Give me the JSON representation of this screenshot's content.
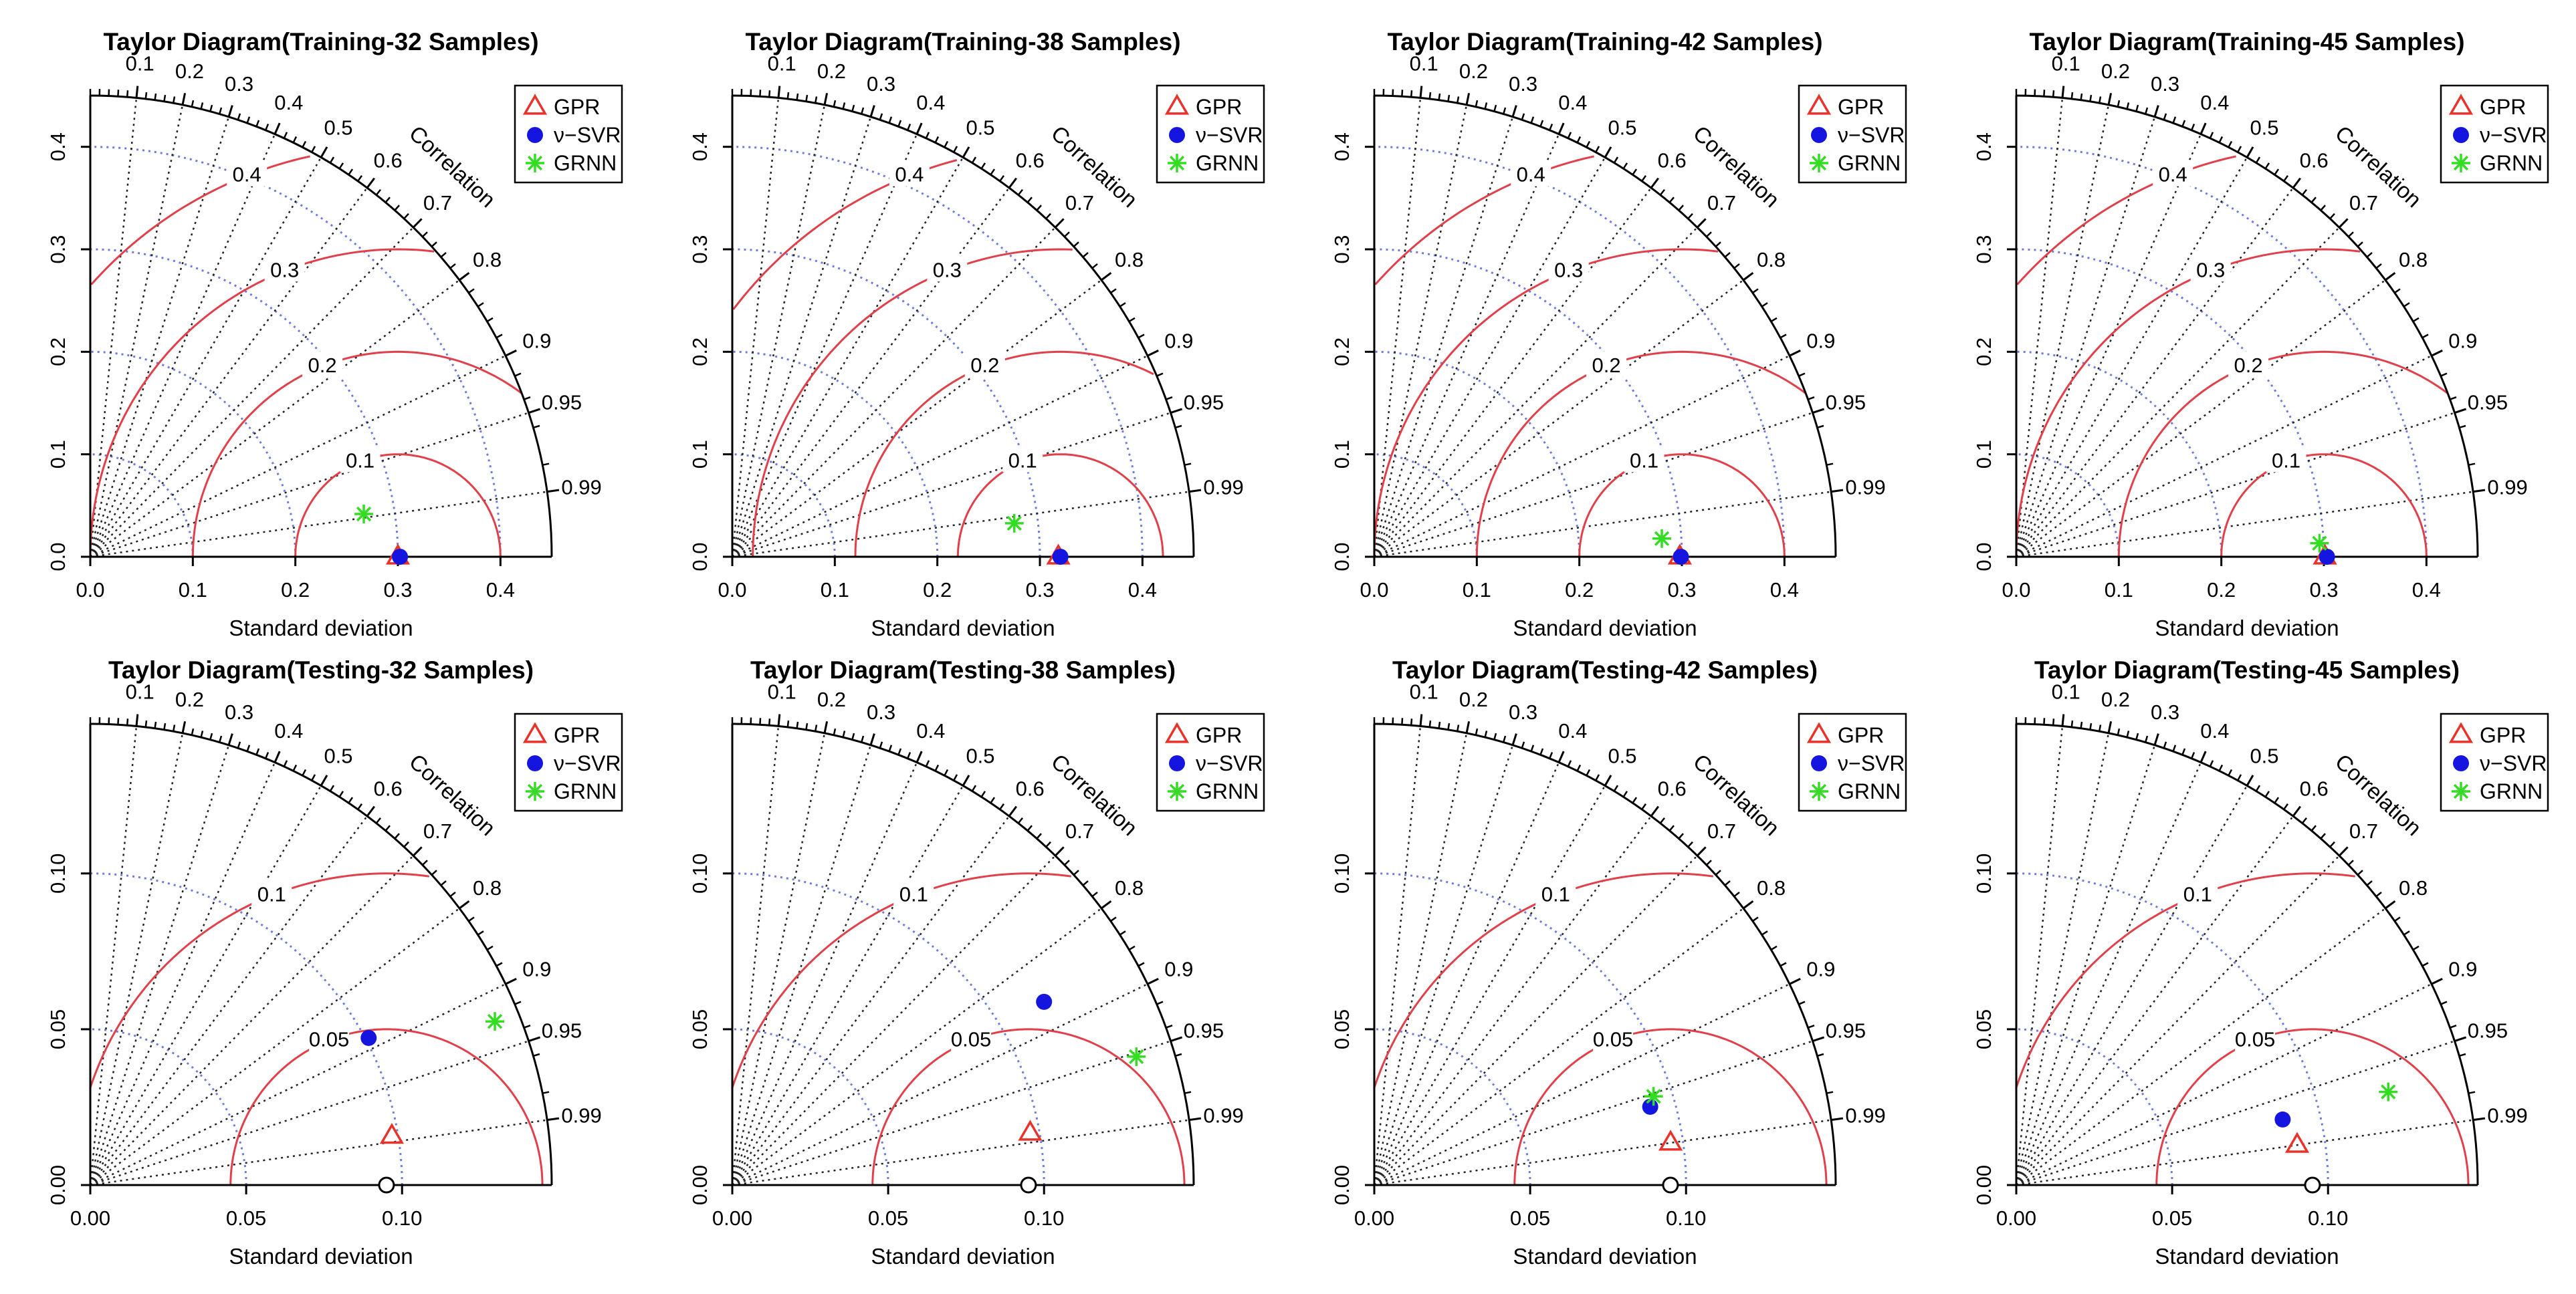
{
  "figure": {
    "description_free": true,
    "axis_x_label": "Standard deviation",
    "axis_y_label": "",
    "correlation_label": "Correlation",
    "legend": [
      {
        "name": "GPR",
        "marker": "triangle",
        "color": "#e8322a"
      },
      {
        "name": "ν−SVR",
        "marker": "dot",
        "color": "#1515e0"
      },
      {
        "name": "GRNN",
        "marker": "star",
        "color": "#33dd22"
      }
    ],
    "correlation_ticks": [
      "0.1",
      "0.2",
      "0.3",
      "0.4",
      "0.5",
      "0.6",
      "0.7",
      "0.8",
      "0.9",
      "0.95",
      "0.99"
    ],
    "colors": {
      "rms": "#e0404a",
      "sd_ref": "#6f7bdc",
      "corr": "#222222",
      "axis": "#000000"
    }
  },
  "chart_data": [
    {
      "type": "taylor",
      "title": "Taylor Diagram(Training-32 Samples)",
      "sd_max": 0.45,
      "sd_ticks": [
        "0.0",
        "0.1",
        "0.2",
        "0.3",
        "0.4"
      ],
      "y_ticks": [
        "0.0",
        "0.1",
        "0.2",
        "0.3",
        "0.4"
      ],
      "reference_sd": 0.3,
      "reference_marker": "filled",
      "sd_arcs": [
        0.1,
        0.2,
        0.3,
        0.4
      ],
      "rms_arcs": [
        "0.1",
        "0.2",
        "0.3",
        "0.4"
      ],
      "points": [
        {
          "model": "GPR",
          "sd": 0.3,
          "corr": 1.0
        },
        {
          "model": "ν−SVR",
          "sd": 0.302,
          "corr": 1.0
        },
        {
          "model": "GRNN",
          "sd": 0.27,
          "corr": 0.988
        }
      ]
    },
    {
      "type": "taylor",
      "title": "Taylor Diagram(Training-38 Samples)",
      "sd_max": 0.45,
      "sd_ticks": [
        "0.0",
        "0.1",
        "0.2",
        "0.3",
        "0.4"
      ],
      "y_ticks": [
        "0.0",
        "0.1",
        "0.2",
        "0.3",
        "0.4"
      ],
      "reference_sd": 0.32,
      "reference_marker": "filled",
      "sd_arcs": [
        0.1,
        0.2,
        0.3,
        0.4
      ],
      "rms_arcs": [
        "0.1",
        "0.2",
        "0.3",
        "0.4"
      ],
      "points": [
        {
          "model": "GPR",
          "sd": 0.318,
          "corr": 1.0
        },
        {
          "model": "ν−SVR",
          "sd": 0.32,
          "corr": 1.0
        },
        {
          "model": "GRNN",
          "sd": 0.277,
          "corr": 0.993
        }
      ]
    },
    {
      "type": "taylor",
      "title": "Taylor Diagram(Training-42 Samples)",
      "sd_max": 0.45,
      "sd_ticks": [
        "0.0",
        "0.1",
        "0.2",
        "0.3",
        "0.4"
      ],
      "y_ticks": [
        "0.0",
        "0.1",
        "0.2",
        "0.3",
        "0.4"
      ],
      "reference_sd": 0.3,
      "reference_marker": "filled",
      "sd_arcs": [
        0.1,
        0.2,
        0.3,
        0.4
      ],
      "rms_arcs": [
        "0.1",
        "0.2",
        "0.3",
        "0.4"
      ],
      "points": [
        {
          "model": "GPR",
          "sd": 0.298,
          "corr": 1.0
        },
        {
          "model": "ν−SVR",
          "sd": 0.299,
          "corr": 1.0
        },
        {
          "model": "GRNN",
          "sd": 0.281,
          "corr": 0.998
        }
      ]
    },
    {
      "type": "taylor",
      "title": "Taylor Diagram(Training-45 Samples)",
      "sd_max": 0.45,
      "sd_ticks": [
        "0.0",
        "0.1",
        "0.2",
        "0.3",
        "0.4"
      ],
      "y_ticks": [
        "0.0",
        "0.1",
        "0.2",
        "0.3",
        "0.4"
      ],
      "reference_sd": 0.3,
      "reference_marker": "filled",
      "sd_arcs": [
        0.1,
        0.2,
        0.3,
        0.4
      ],
      "rms_arcs": [
        "0.1",
        "0.2",
        "0.3",
        "0.4"
      ],
      "points": [
        {
          "model": "GPR",
          "sd": 0.301,
          "corr": 1.0
        },
        {
          "model": "ν−SVR",
          "sd": 0.303,
          "corr": 1.0
        },
        {
          "model": "GRNN",
          "sd": 0.296,
          "corr": 0.999
        }
      ]
    },
    {
      "type": "taylor",
      "title": "Taylor Diagram(Testing-32 Samples)",
      "sd_max": 0.148,
      "sd_ticks": [
        "0.00",
        "0.05",
        "0.10"
      ],
      "y_ticks": [
        "0.00",
        "0.05",
        "0.10"
      ],
      "reference_sd": 0.095,
      "reference_marker": "open",
      "sd_arcs": [
        0.05,
        0.1
      ],
      "rms_arcs": [
        "0.05",
        "0.1"
      ],
      "points": [
        {
          "model": "GPR",
          "sd": 0.098,
          "corr": 0.987
        },
        {
          "model": "ν−SVR",
          "sd": 0.101,
          "corr": 0.884
        },
        {
          "model": "GRNN",
          "sd": 0.14,
          "corr": 0.927
        }
      ]
    },
    {
      "type": "taylor",
      "title": "Taylor Diagram(Testing-38 Samples)",
      "sd_max": 0.148,
      "sd_ticks": [
        "0.00",
        "0.05",
        "0.10"
      ],
      "y_ticks": [
        "0.00",
        "0.05",
        "0.10"
      ],
      "reference_sd": 0.095,
      "reference_marker": "open",
      "sd_arcs": [
        0.05,
        0.1
      ],
      "rms_arcs": [
        "0.05",
        "0.1"
      ],
      "points": [
        {
          "model": "GPR",
          "sd": 0.097,
          "corr": 0.985
        },
        {
          "model": "ν−SVR",
          "sd": 0.116,
          "corr": 0.862
        },
        {
          "model": "GRNN",
          "sd": 0.136,
          "corr": 0.953
        }
      ]
    },
    {
      "type": "taylor",
      "title": "Taylor Diagram(Testing-42 Samples)",
      "sd_max": 0.148,
      "sd_ticks": [
        "0.00",
        "0.05",
        "0.10"
      ],
      "y_ticks": [
        "0.00",
        "0.05",
        "0.10"
      ],
      "reference_sd": 0.095,
      "reference_marker": "open",
      "sd_arcs": [
        0.05,
        0.1
      ],
      "rms_arcs": [
        "0.05",
        "0.1"
      ],
      "points": [
        {
          "model": "GPR",
          "sd": 0.096,
          "corr": 0.99
        },
        {
          "model": "ν−SVR",
          "sd": 0.092,
          "corr": 0.962
        },
        {
          "model": "GRNN",
          "sd": 0.094,
          "corr": 0.953
        }
      ]
    },
    {
      "type": "taylor",
      "title": "Taylor Diagram(Testing-45 Samples)",
      "sd_max": 0.148,
      "sd_ticks": [
        "0.00",
        "0.05",
        "0.10"
      ],
      "y_ticks": [
        "0.00",
        "0.05",
        "0.10"
      ],
      "reference_sd": 0.095,
      "reference_marker": "open",
      "sd_arcs": [
        0.05,
        0.1
      ],
      "rms_arcs": [
        "0.05",
        "0.1"
      ],
      "points": [
        {
          "model": "GPR",
          "sd": 0.091,
          "corr": 0.99
        },
        {
          "model": "ν−SVR",
          "sd": 0.088,
          "corr": 0.971
        },
        {
          "model": "GRNN",
          "sd": 0.123,
          "corr": 0.97
        }
      ]
    }
  ]
}
